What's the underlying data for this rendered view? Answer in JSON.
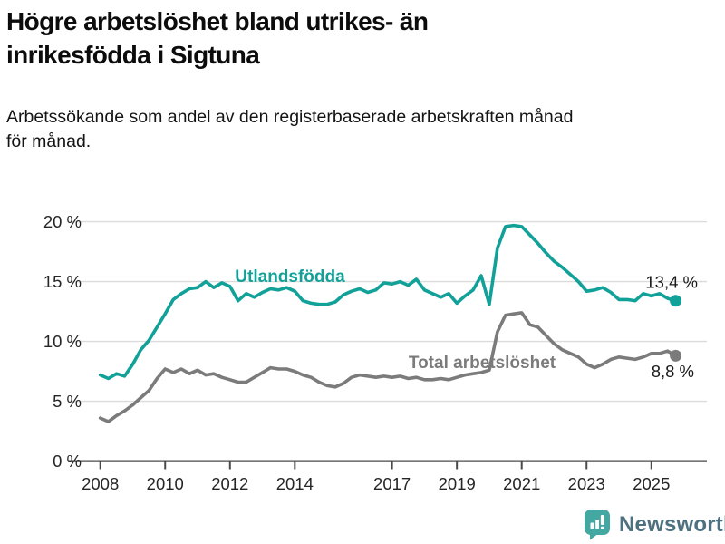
{
  "header": {
    "title": "Högre arbetslöshet bland utrikes- än inrikesfödda i Sigtuna",
    "subtitle": "Arbetssökande som andel av den registerbaserade arbetskraften månad för månad."
  },
  "branding": {
    "logo_text": "Newsworthy",
    "logo_icon": "bar-chart-speech-bubble-icon"
  },
  "colors": {
    "grid": "#dcdcdc",
    "axis": "#4a4a4a",
    "tick_text": "#262626",
    "value_text": "#1a1a1a",
    "logo_icon": "#43a8a2",
    "logo_text": "#4e7180"
  },
  "chart_data": {
    "type": "line",
    "title": "Högre arbetslöshet bland utrikes- än inrikesfödda i Sigtuna",
    "xlabel": "",
    "ylabel": "",
    "unit": "%",
    "grid": true,
    "x_axis": {
      "ticks": [
        2008,
        2010,
        2012,
        2014,
        2017,
        2019,
        2021,
        2023,
        2025
      ],
      "tick_labels": [
        "2008",
        "2010",
        "2012",
        "2014",
        "2017",
        "2019",
        "2021",
        "2023",
        "2025"
      ],
      "range": [
        2007.0,
        2026.6
      ]
    },
    "y_axis": {
      "ticks": [
        0,
        5,
        10,
        15,
        20
      ],
      "tick_labels": [
        "0 %",
        "5 %",
        "10 %",
        "15 %",
        "20 %"
      ],
      "range": [
        0,
        21.5
      ]
    },
    "x": [
      2008,
      2008.25,
      2008.5,
      2008.75,
      2009,
      2009.25,
      2009.5,
      2009.75,
      2010,
      2010.25,
      2010.5,
      2010.75,
      2011,
      2011.25,
      2011.5,
      2011.75,
      2012,
      2012.25,
      2012.5,
      2012.75,
      2013,
      2013.25,
      2013.5,
      2013.75,
      2014,
      2014.25,
      2014.5,
      2014.75,
      2015,
      2015.25,
      2015.5,
      2015.75,
      2016,
      2016.25,
      2016.5,
      2016.75,
      2017,
      2017.25,
      2017.5,
      2017.75,
      2018,
      2018.25,
      2018.5,
      2018.75,
      2019,
      2019.25,
      2019.5,
      2019.75,
      2020,
      2020.25,
      2020.5,
      2020.75,
      2021,
      2021.25,
      2021.5,
      2021.75,
      2022,
      2022.25,
      2022.5,
      2022.75,
      2023,
      2023.25,
      2023.5,
      2023.75,
      2024,
      2024.25,
      2024.5,
      2024.75,
      2025,
      2025.25,
      2025.5,
      2025.75
    ],
    "series": [
      {
        "name": "Utlandsfödda",
        "color": "#12a199",
        "end_label": "13,4 %",
        "end_value": 13.4,
        "values": [
          7.2,
          6.9,
          7.3,
          7.1,
          8.1,
          9.3,
          10.1,
          11.2,
          12.3,
          13.5,
          14.0,
          14.4,
          14.5,
          15.0,
          14.5,
          14.9,
          14.6,
          13.4,
          14.0,
          13.7,
          14.1,
          14.4,
          14.3,
          14.5,
          14.2,
          13.4,
          13.2,
          13.1,
          13.1,
          13.3,
          13.9,
          14.2,
          14.4,
          14.1,
          14.3,
          14.9,
          14.8,
          15.0,
          14.7,
          15.2,
          14.3,
          14.0,
          13.7,
          14.0,
          13.2,
          13.8,
          14.3,
          15.5,
          13.1,
          17.8,
          19.6,
          19.7,
          19.6,
          18.9,
          18.2,
          17.4,
          16.7,
          16.2,
          15.6,
          15.0,
          14.2,
          14.3,
          14.5,
          14.1,
          13.5,
          13.5,
          13.4,
          14.0,
          13.8,
          14.0,
          13.6,
          13.4
        ]
      },
      {
        "name": "Total arbetslöshet",
        "color": "#7b7b7b",
        "end_label": "8,8 %",
        "end_value": 8.8,
        "values": [
          3.6,
          3.3,
          3.8,
          4.2,
          4.7,
          5.3,
          5.9,
          6.9,
          7.7,
          7.4,
          7.7,
          7.3,
          7.6,
          7.2,
          7.3,
          7.0,
          6.8,
          6.6,
          6.6,
          7.0,
          7.4,
          7.8,
          7.7,
          7.7,
          7.5,
          7.2,
          7.0,
          6.6,
          6.3,
          6.2,
          6.5,
          7.0,
          7.2,
          7.1,
          7.0,
          7.1,
          7.0,
          7.1,
          6.9,
          7.0,
          6.8,
          6.8,
          6.9,
          6.8,
          7.0,
          7.2,
          7.3,
          7.4,
          7.6,
          10.8,
          12.2,
          12.3,
          12.4,
          11.4,
          11.2,
          10.5,
          9.8,
          9.3,
          9.0,
          8.7,
          8.1,
          7.8,
          8.1,
          8.5,
          8.7,
          8.6,
          8.5,
          8.7,
          9.0,
          9.0,
          9.2,
          8.8
        ]
      }
    ],
    "legend_position": "inline-labels"
  }
}
